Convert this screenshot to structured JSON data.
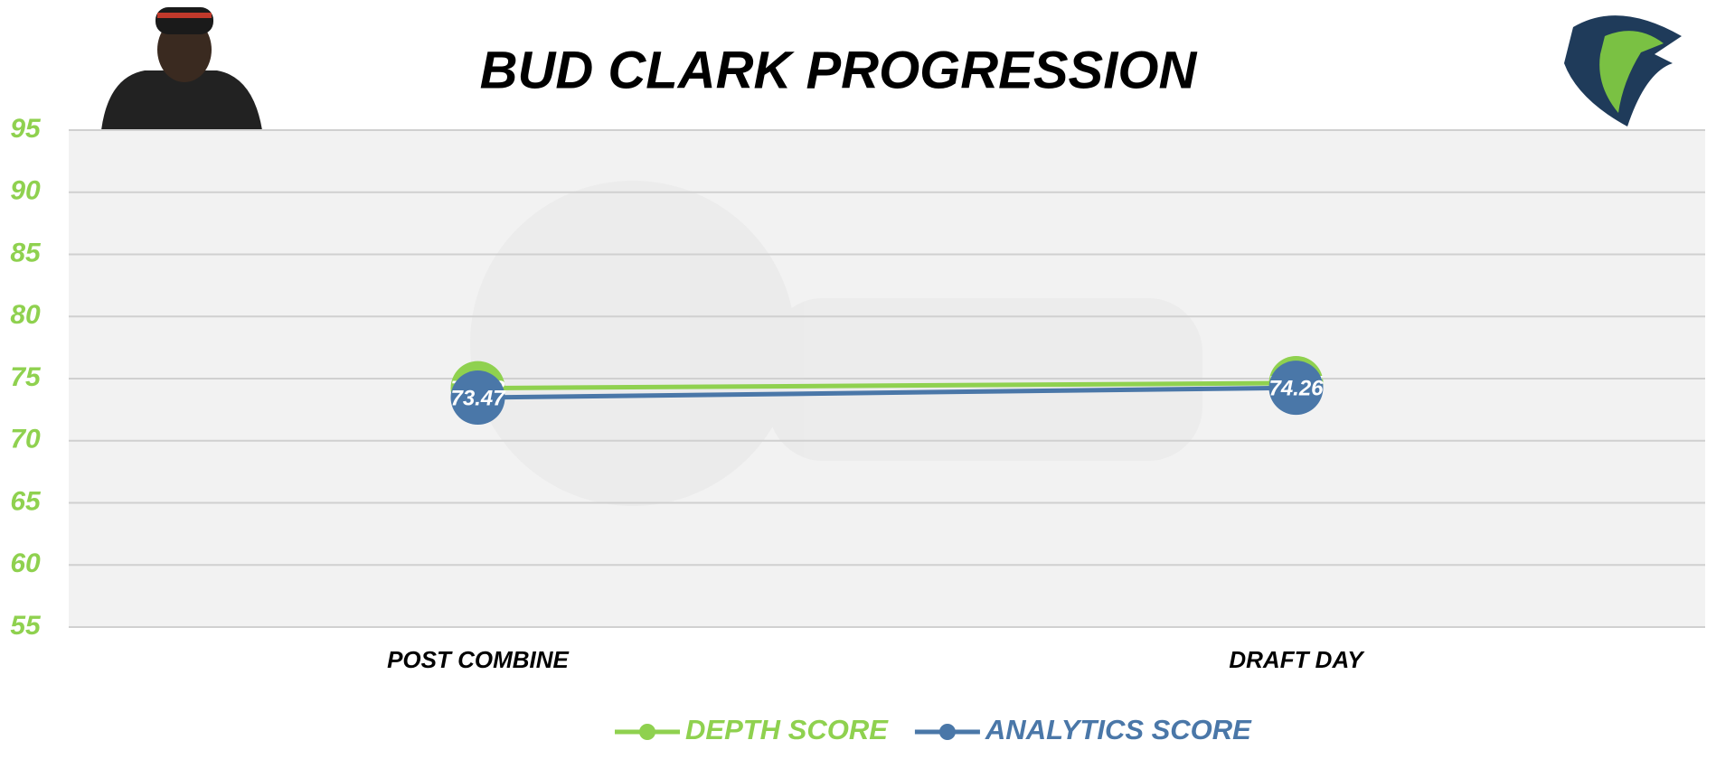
{
  "chart_data": {
    "type": "line",
    "title": "BUD CLARK PROGRESSION",
    "categories": [
      "POST COMBINE",
      "DRAFT DAY"
    ],
    "series": [
      {
        "name": "DEPTH SCORE",
        "color": "#8fd14f",
        "values": [
          74.23,
          74.64
        ]
      },
      {
        "name": "ANALYTICS SCORE",
        "color": "#4a77a8",
        "values": [
          73.47,
          74.26
        ]
      }
    ],
    "ylim": [
      55,
      95
    ],
    "yticks": [
      55,
      60,
      65,
      70,
      75,
      80,
      85,
      90,
      95
    ],
    "grid": true,
    "legend": "bottom",
    "tick_color": "#8fd14f"
  }
}
